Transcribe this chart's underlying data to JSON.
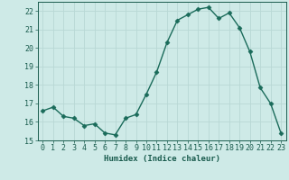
{
  "x": [
    0,
    1,
    2,
    3,
    4,
    5,
    6,
    7,
    8,
    9,
    10,
    11,
    12,
    13,
    14,
    15,
    16,
    17,
    18,
    19,
    20,
    21,
    22,
    23
  ],
  "y": [
    16.6,
    16.8,
    16.3,
    16.2,
    15.8,
    15.9,
    15.4,
    15.3,
    16.2,
    16.4,
    17.5,
    18.7,
    20.3,
    21.5,
    21.8,
    22.1,
    22.2,
    21.6,
    21.9,
    21.1,
    19.8,
    17.85,
    17.0,
    15.4
  ],
  "line_color": "#1a6b5a",
  "marker": "D",
  "marker_size": 2.5,
  "bg_color": "#ceeae7",
  "grid_color": "#b8d8d5",
  "tick_color": "#1a5c4e",
  "label_color": "#1a5c4e",
  "xlabel": "Humidex (Indice chaleur)",
  "ylim": [
    15,
    22.5
  ],
  "yticks": [
    15,
    16,
    17,
    18,
    19,
    20,
    21,
    22
  ],
  "xticks": [
    0,
    1,
    2,
    3,
    4,
    5,
    6,
    7,
    8,
    9,
    10,
    11,
    12,
    13,
    14,
    15,
    16,
    17,
    18,
    19,
    20,
    21,
    22,
    23
  ],
  "xlabel_fontsize": 6.5,
  "tick_fontsize": 6,
  "linewidth": 1.0
}
